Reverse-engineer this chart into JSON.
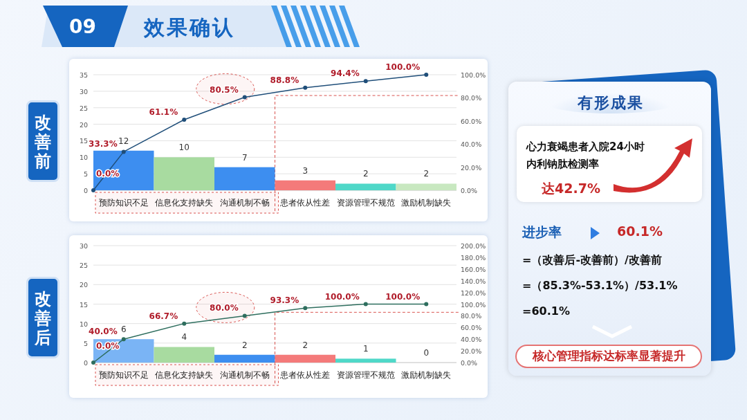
{
  "chart_data": [
    {
      "type": "bar",
      "title": "改善前",
      "annotations": [
        "09",
        "效果确认",
        {
          "text": "0.0%",
          "x": "预防知识不足",
          "y": 0
        }
      ],
      "categories": [
        "预防知识不足",
        "信息化支持缺失",
        "沟通机制不畅",
        "患者依从性差",
        "资源管理不规范",
        "激励机制缺失"
      ],
      "ylim": [
        0,
        35
      ],
      "yticks": [
        0,
        5,
        10,
        15,
        20,
        25,
        30,
        35
      ],
      "y2lim": [
        0,
        100
      ],
      "y2ticks": [
        {
          "value": 0,
          "label": "0.0%"
        },
        {
          "value": 20,
          "label": "20.0%"
        },
        {
          "value": 40,
          "label": "40.0%"
        },
        {
          "value": 60,
          "label": "60.0%"
        },
        {
          "value": 80,
          "label": "80.0%"
        },
        {
          "value": 100,
          "label": "100.0%"
        }
      ],
      "grid": "y",
      "marker": "circle",
      "ref_lines": [
        {
          "axis": "y2",
          "value": 82,
          "color": "#d9534f",
          "line_style": "dashed"
        }
      ],
      "series": [
        {
          "type": "bar",
          "colors": [
            "#3d8ef0",
            "#a8dba0",
            "#3d8ef0",
            "#f47a7a",
            "#4fd8c8",
            "#c8e8c0"
          ],
          "values": [
            12,
            10,
            7,
            3,
            2,
            2
          ],
          "value_labels": [
            "12",
            "10",
            "7",
            "3",
            "2",
            "2"
          ]
        },
        {
          "type": "line",
          "axis": "y2",
          "color": "#1f4e79",
          "values": [
            33.3,
            61.1,
            80.5,
            88.8,
            94.4,
            100
          ],
          "value_labels": [
            "33.3%",
            "61.1%",
            "80.5%",
            "88.8%",
            "94.4%",
            "100.0%"
          ]
        }
      ]
    },
    {
      "type": "bar",
      "title": "改善后",
      "annotations": [
        {
          "text": "0.0%",
          "x": "预防知识不足",
          "y": 0
        }
      ],
      "categories": [
        "预防知识不足",
        "信息化支持缺失",
        "沟通机制不畅",
        "患者依从性差",
        "资源管理不规范",
        "激励机制缺失"
      ],
      "ylim": [
        0,
        30
      ],
      "yticks": [
        0,
        5,
        10,
        15,
        20,
        25,
        30
      ],
      "y2lim": [
        0,
        200
      ],
      "y2ticks": [
        {
          "value": 0,
          "label": "0.0%"
        },
        {
          "value": 20,
          "label": "20.0%"
        },
        {
          "value": 40,
          "label": "40.0%"
        },
        {
          "value": 60,
          "label": "60.0%"
        },
        {
          "value": 80,
          "label": "80.0%"
        },
        {
          "value": 100,
          "label": "100.0%"
        },
        {
          "value": 120,
          "label": "120.0%"
        },
        {
          "value": 140,
          "label": "140.0%"
        },
        {
          "value": 160,
          "label": "160.0%"
        },
        {
          "value": 180,
          "label": "180.0%"
        },
        {
          "value": 200,
          "label": "200.0%"
        }
      ],
      "grid": "y",
      "marker": "circle",
      "ref_lines": [
        {
          "axis": "y2",
          "value": 86,
          "color": "#d9534f",
          "line_style": "dashed"
        }
      ],
      "series": [
        {
          "type": "bar",
          "colors": [
            "#7ab4f5",
            "#a8dba0",
            "#3d8ef0",
            "#f47a7a",
            "#4fd8c8",
            "#c8e8c0"
          ],
          "values": [
            6,
            4,
            2,
            2,
            1,
            0
          ],
          "value_labels": [
            "6",
            "4",
            "2",
            "2",
            "1",
            "0"
          ]
        },
        {
          "type": "line",
          "axis": "y2",
          "color": "#2e6e5e",
          "values": [
            40,
            66.7,
            80,
            93.3,
            100,
            100
          ],
          "value_labels": [
            "40.0%",
            "66.7%",
            "80.0%",
            "93.3%",
            "100.0%",
            "100.0%"
          ]
        }
      ]
    },
    {
      "type": "other",
      "title": "有形成果",
      "annotations": [
        "心力衰竭患者入院24小时内利钠肽检测率",
        "达42.7%",
        "进步率",
        "60.1%",
        "=（改善后-改善前）/改善前",
        "=（85.3%-53.1%）/53.1%",
        "=60.1%",
        "核心管理指标达标率显著提升"
      ]
    }
  ]
}
